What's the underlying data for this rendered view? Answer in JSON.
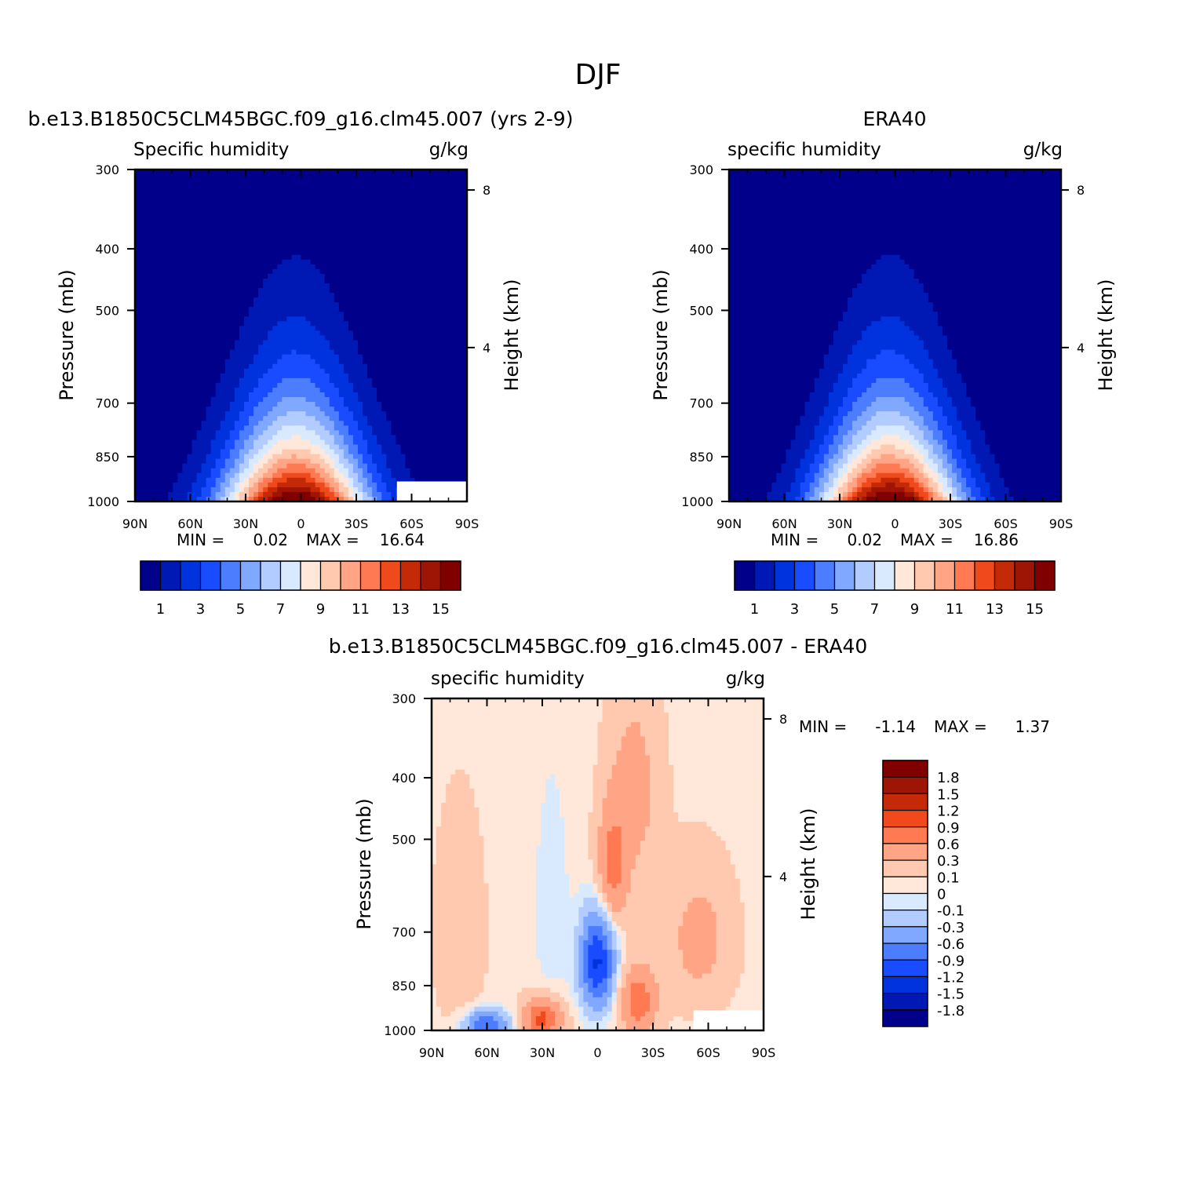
{
  "figure": {
    "title": "DJF"
  },
  "panels": [
    {
      "id": "model",
      "main_title": "b.e13.B1850C5CLM45BGC.f09_g16.clm45.007 (yrs 2-9)",
      "left_label": "Specific humidity",
      "right_label": "g/kg",
      "ylabel": "Pressure (mb)",
      "y2label": "Height (km)",
      "min_label": "MIN =",
      "min_value": "0.02",
      "max_label": "MAX =",
      "max_value": "16.64",
      "width_scale": 1.0,
      "peak": 16.64,
      "missing_box": "yes"
    },
    {
      "id": "obs",
      "main_title": "ERA40",
      "left_label": "specific humidity",
      "right_label": "g/kg",
      "ylabel": "Pressure (mb)",
      "y2label": "Height (km)",
      "min_label": "MIN =",
      "min_value": "0.02",
      "max_label": "MAX =",
      "max_value": "16.86",
      "width_scale": 0.96,
      "peak": 16.86,
      "missing_box": "no"
    },
    {
      "id": "diff",
      "main_title": "b.e13.B1850C5CLM45BGC.f09_g16.clm45.007 - ERA40",
      "left_label": "specific humidity",
      "right_label": "g/kg",
      "ylabel": "Pressure (mb)",
      "y2label": "Height (km)",
      "min_label": "MIN =",
      "min_value": "-1.14",
      "max_label": "MAX =",
      "max_value": "1.37",
      "missing_box": "yes"
    }
  ],
  "chart_data": {
    "type": "heatmap",
    "x_ticks": [
      "90N",
      "60N",
      "30N",
      "0",
      "30S",
      "60S",
      "90S"
    ],
    "x_range": [
      90,
      -90
    ],
    "y_ticks": [
      300,
      400,
      500,
      700,
      850,
      1000
    ],
    "y_range": [
      300,
      1000
    ],
    "y_scale": "log",
    "y2_ticks": [
      8,
      4
    ],
    "humidity_levels": [
      1,
      2,
      3,
      4,
      5,
      6,
      7,
      8,
      9,
      10,
      11,
      12,
      13,
      14,
      15
    ],
    "humidity_colorbar_labels": [
      "1",
      "3",
      "5",
      "7",
      "9",
      "11",
      "13",
      "15"
    ],
    "humidity_colors": [
      "#00008b",
      "#0019b4",
      "#0033de",
      "#1a4cff",
      "#4d7dff",
      "#80a8ff",
      "#b3ccff",
      "#d9eaff",
      "#ffe8d9",
      "#ffc9b0",
      "#ffa585",
      "#ff7a52",
      "#f04a1c",
      "#c42a08",
      "#9e1405",
      "#800000"
    ],
    "diff_levels": [
      -1.8,
      -1.5,
      -1.2,
      -0.9,
      -0.6,
      -0.3,
      -0.1,
      0,
      0.1,
      0.3,
      0.6,
      0.9,
      1.2,
      1.5,
      1.8
    ],
    "diff_colorbar_labels": [
      "1.8",
      "1.5",
      "1.2",
      "0.9",
      "0.6",
      "0.3",
      "0.1",
      "0",
      "-0.1",
      "-0.3",
      "-0.6",
      "-0.9",
      "-1.2",
      "-1.5",
      "-1.8"
    ],
    "diff_colors": [
      "#00008b",
      "#0019b4",
      "#0033de",
      "#1a4cff",
      "#4d7dff",
      "#80a8ff",
      "#b3ccff",
      "#d9eaff",
      "#ffe8d9",
      "#ffc9b0",
      "#ffa585",
      "#ff7a52",
      "#f04a1c",
      "#c42a08",
      "#9e1405",
      "#800000"
    ],
    "missing_color": "#ffffff"
  }
}
